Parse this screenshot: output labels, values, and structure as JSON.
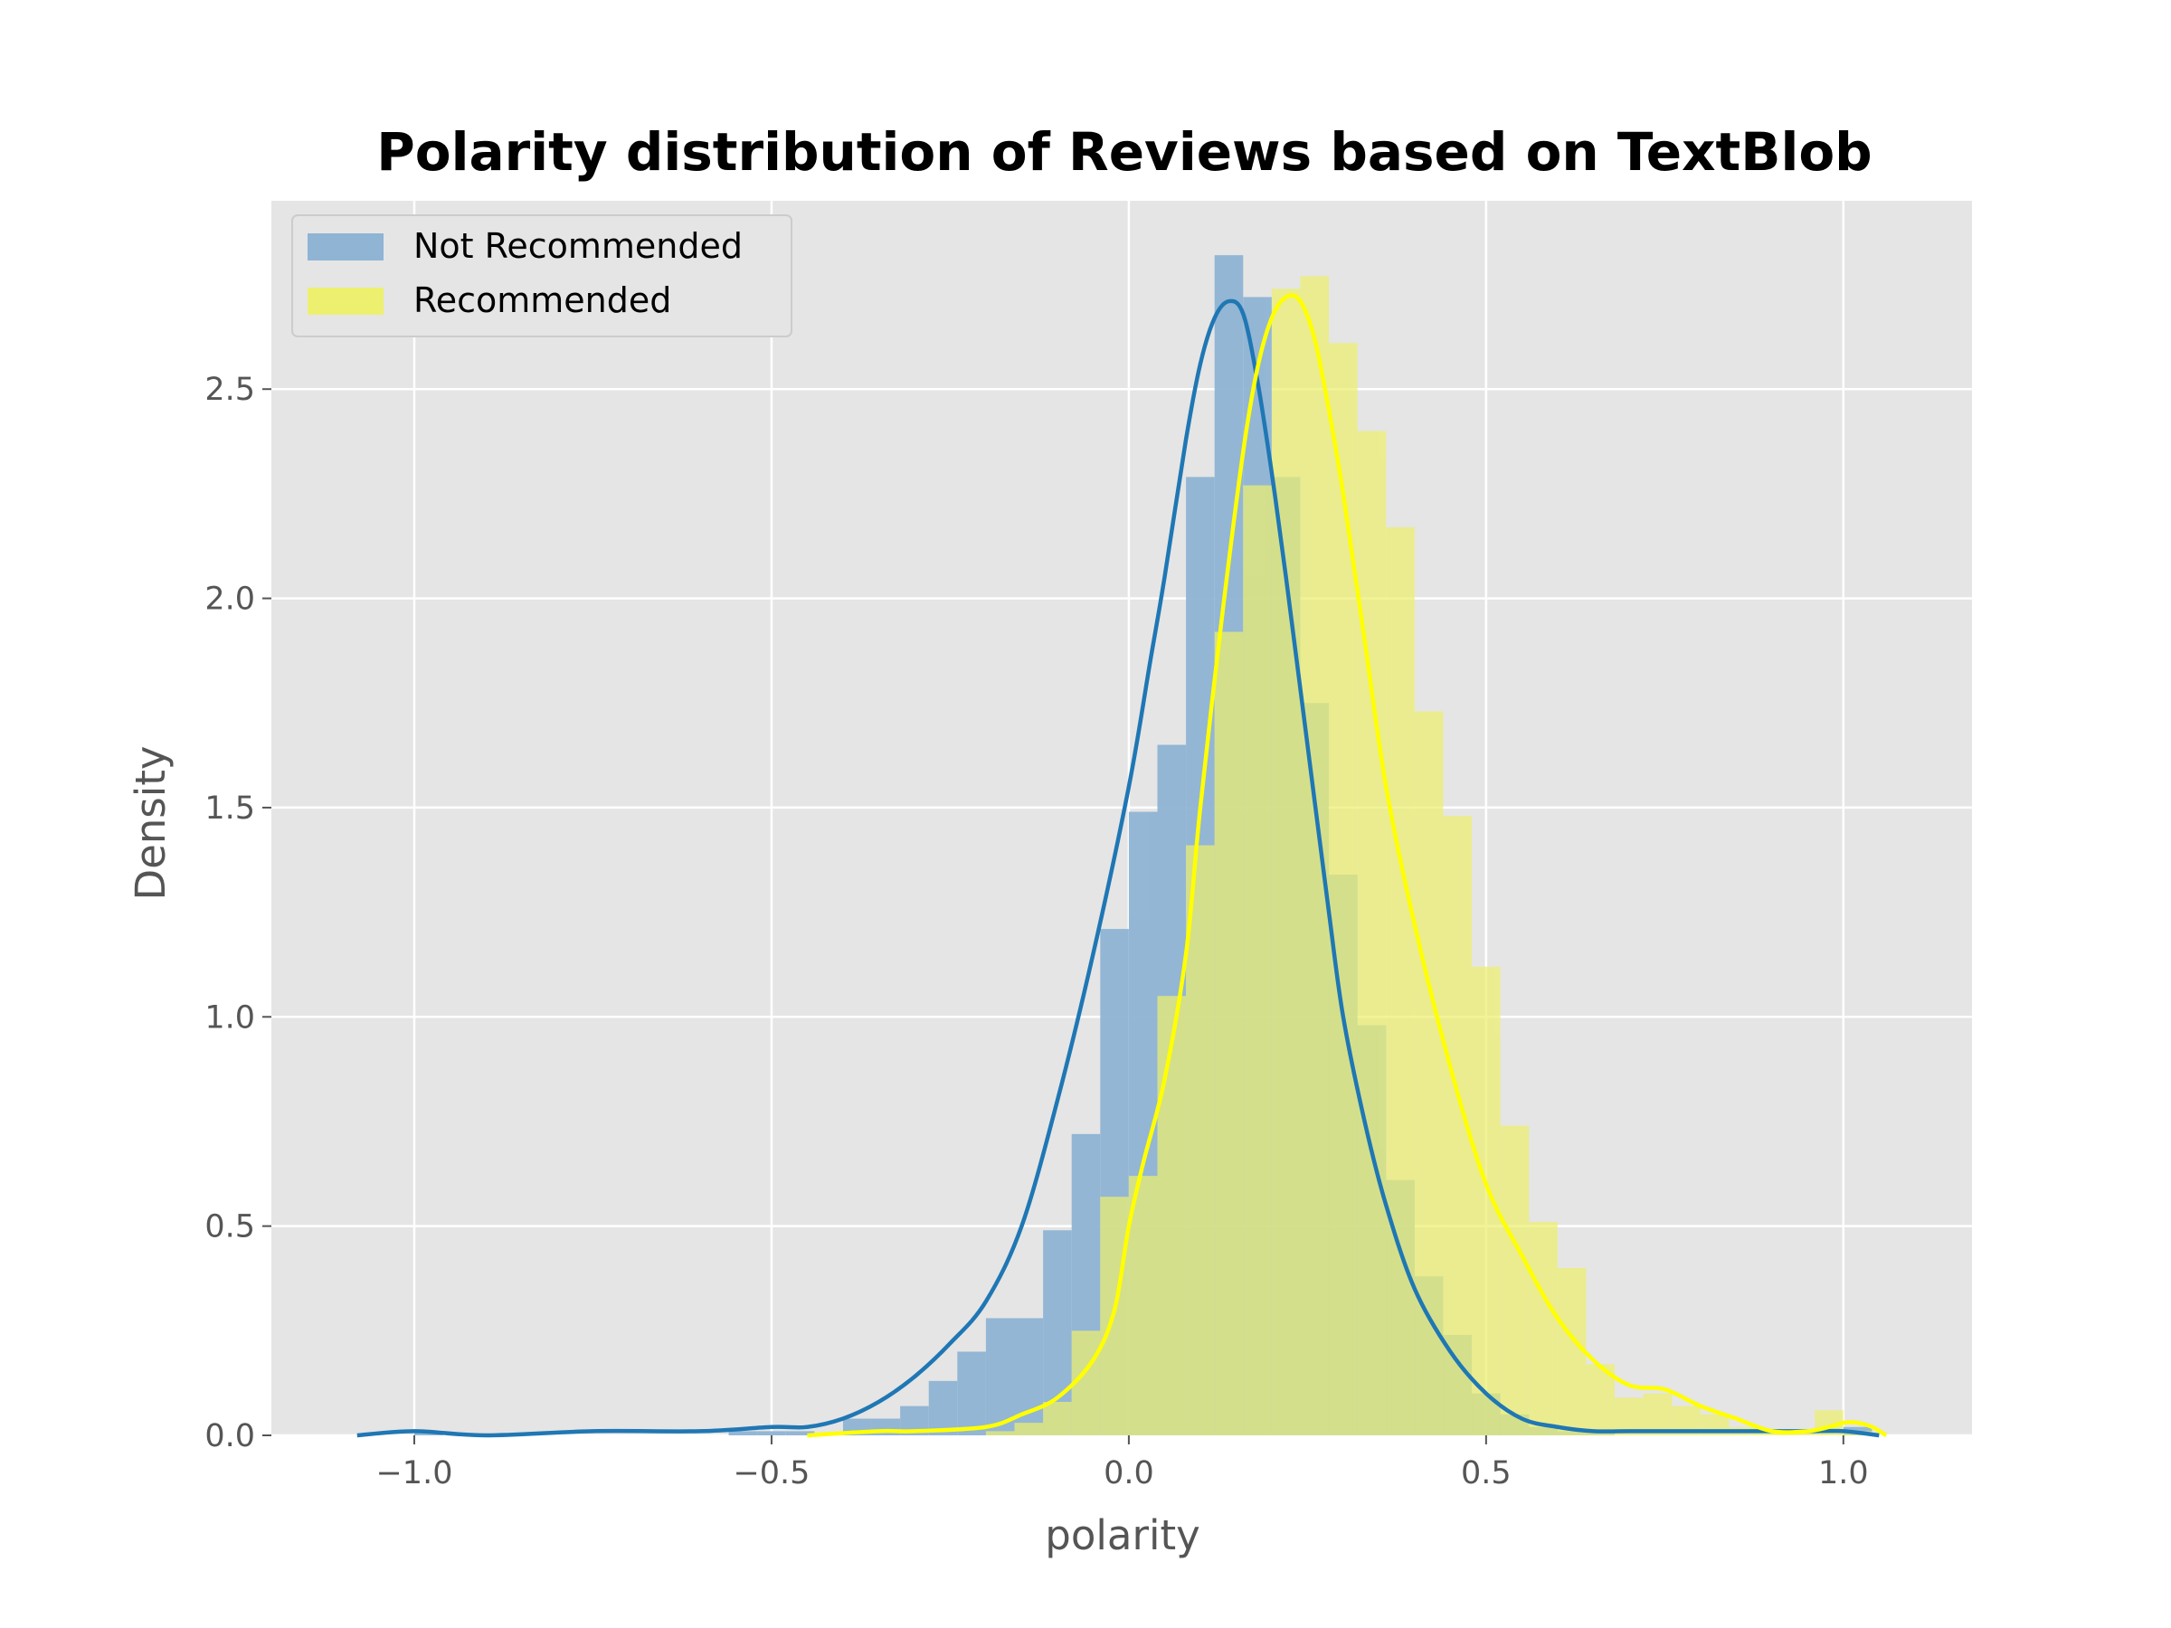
{
  "chart_data": {
    "type": "bar",
    "title": "Polarity distribution of Reviews based on TextBlob",
    "xlabel": "polarity",
    "ylabel": "Density",
    "xlim": [
      -1.2,
      1.18
    ],
    "ylim": [
      0,
      2.95
    ],
    "xticks": [
      {
        "value": -1.0,
        "label": "−1.0"
      },
      {
        "value": -0.5,
        "label": "−0.5"
      },
      {
        "value": 0.0,
        "label": "0.0"
      },
      {
        "value": 0.5,
        "label": "0.5"
      },
      {
        "value": 1.0,
        "label": "1.0"
      }
    ],
    "yticks": [
      {
        "value": 0.0,
        "label": "0.0"
      },
      {
        "value": 0.5,
        "label": "0.5"
      },
      {
        "value": 1.0,
        "label": "1.0"
      },
      {
        "value": 1.5,
        "label": "1.5"
      },
      {
        "value": 2.0,
        "label": "2.0"
      },
      {
        "value": 2.5,
        "label": "2.5"
      }
    ],
    "grid": true,
    "legend_position": "top-left",
    "series": [
      {
        "name": "Not Recommended",
        "color": "#1f77b4",
        "hist_color": "#8fb4d4",
        "bin_width": 0.04,
        "bin_starts": [
          -1.08,
          -1.04,
          -1.0,
          -0.96,
          -0.92,
          -0.88,
          -0.84,
          -0.8,
          -0.76,
          -0.72,
          -0.68,
          -0.64,
          -0.6,
          -0.56,
          -0.52,
          -0.48,
          -0.44,
          -0.4,
          -0.36,
          -0.32,
          -0.28,
          -0.24,
          -0.2,
          -0.16,
          -0.12,
          -0.08,
          -0.04,
          0.0,
          0.04,
          0.08,
          0.12,
          0.16,
          0.2,
          0.24,
          0.28,
          0.32,
          0.36,
          0.4,
          0.44,
          0.48,
          0.52,
          0.56,
          0.6,
          0.64,
          0.68,
          0.72,
          0.76,
          0.8,
          0.84,
          0.88,
          0.92,
          0.96,
          1.0
        ],
        "hist_values": [
          0.0,
          0.0,
          0.01,
          0.0,
          0.0,
          0.0,
          0.0,
          0.0,
          0.0,
          0.0,
          0.0,
          0.0,
          0.0,
          0.01,
          0.01,
          0.01,
          0.0,
          0.04,
          0.04,
          0.07,
          0.13,
          0.2,
          0.28,
          0.28,
          0.49,
          0.72,
          1.21,
          1.49,
          1.65,
          2.29,
          2.82,
          2.72,
          2.29,
          1.75,
          1.34,
          0.98,
          0.61,
          0.38,
          0.24,
          0.1,
          0.05,
          0.02,
          0.01,
          0.01,
          0.0,
          0.0,
          0.0,
          0.0,
          0.0,
          0.0,
          0.0,
          0.0,
          0.02
        ],
        "kde": {
          "x": [
            -1.08,
            -1.0,
            -0.9,
            -0.75,
            -0.6,
            -0.5,
            -0.45,
            -0.4,
            -0.35,
            -0.3,
            -0.25,
            -0.2,
            -0.15,
            -0.1,
            -0.05,
            0.0,
            0.03,
            0.05,
            0.08,
            0.1,
            0.12,
            0.14,
            0.16,
            0.18,
            0.2,
            0.22,
            0.25,
            0.28,
            0.3,
            0.33,
            0.36,
            0.4,
            0.45,
            0.5,
            0.55,
            0.6,
            0.65,
            0.7,
            0.8,
            0.9,
            0.95,
            1.0,
            1.05
          ],
          "y": [
            0.0,
            0.01,
            0.0,
            0.01,
            0.01,
            0.02,
            0.02,
            0.04,
            0.08,
            0.14,
            0.22,
            0.32,
            0.5,
            0.8,
            1.15,
            1.55,
            1.85,
            2.05,
            2.38,
            2.56,
            2.67,
            2.71,
            2.68,
            2.52,
            2.3,
            2.05,
            1.65,
            1.25,
            1.0,
            0.75,
            0.55,
            0.35,
            0.2,
            0.1,
            0.04,
            0.02,
            0.01,
            0.01,
            0.01,
            0.01,
            0.01,
            0.01,
            0.0
          ]
        }
      },
      {
        "name": "Recommended",
        "color": "#ffff00",
        "hist_color": "#edf06f",
        "bin_width": 0.04,
        "bin_starts": [
          -0.44,
          -0.4,
          -0.36,
          -0.32,
          -0.28,
          -0.24,
          -0.2,
          -0.16,
          -0.12,
          -0.08,
          -0.04,
          0.0,
          0.04,
          0.08,
          0.12,
          0.16,
          0.2,
          0.24,
          0.28,
          0.32,
          0.36,
          0.4,
          0.44,
          0.48,
          0.52,
          0.56,
          0.6,
          0.64,
          0.68,
          0.72,
          0.76,
          0.8,
          0.84,
          0.88,
          0.92,
          0.96,
          1.0
        ],
        "hist_values": [
          0.0,
          0.0,
          0.0,
          0.0,
          0.0,
          0.0,
          0.01,
          0.03,
          0.08,
          0.25,
          0.57,
          0.62,
          1.05,
          1.41,
          1.92,
          2.27,
          2.74,
          2.77,
          2.61,
          2.4,
          2.17,
          1.73,
          1.48,
          1.12,
          0.74,
          0.51,
          0.4,
          0.17,
          0.09,
          0.1,
          0.07,
          0.05,
          0.02,
          0.01,
          0.01,
          0.06,
          0.01
        ],
        "kde": {
          "x": [
            -0.45,
            -0.35,
            -0.3,
            -0.2,
            -0.15,
            -0.1,
            -0.05,
            -0.02,
            0.0,
            0.02,
            0.05,
            0.08,
            0.1,
            0.13,
            0.16,
            0.18,
            0.2,
            0.22,
            0.24,
            0.26,
            0.28,
            0.3,
            0.33,
            0.36,
            0.4,
            0.45,
            0.5,
            0.55,
            0.6,
            0.65,
            0.7,
            0.75,
            0.8,
            0.85,
            0.9,
            0.95,
            0.98,
            1.0,
            1.02,
            1.04,
            1.06
          ],
          "y": [
            0.0,
            0.01,
            0.01,
            0.02,
            0.05,
            0.09,
            0.18,
            0.3,
            0.5,
            0.65,
            0.85,
            1.15,
            1.5,
            1.95,
            2.35,
            2.55,
            2.67,
            2.72,
            2.71,
            2.62,
            2.45,
            2.25,
            1.9,
            1.55,
            1.22,
            0.88,
            0.6,
            0.43,
            0.28,
            0.18,
            0.12,
            0.11,
            0.07,
            0.04,
            0.01,
            0.01,
            0.02,
            0.03,
            0.03,
            0.02,
            0.0
          ]
        }
      }
    ]
  }
}
